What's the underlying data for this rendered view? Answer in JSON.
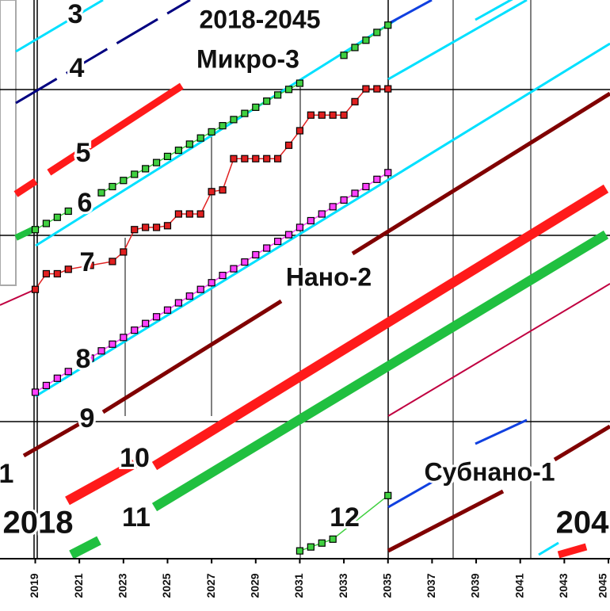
{
  "chart_data": {
    "type": "line",
    "annotations": [
      "3",
      "4",
      "2018-2045",
      "Микро-3",
      "5",
      "6",
      "7",
      "Нано-2",
      "8",
      "9",
      "1",
      "10",
      "Субнано-1",
      "2018",
      "11",
      "12",
      "204"
    ],
    "xlim": [
      2017.4,
      2045
    ],
    "xticks": [
      2019,
      2021,
      2023,
      2025,
      2027,
      2029,
      2031,
      2033,
      2035,
      2037,
      2039,
      2041,
      2043,
      2045
    ],
    "ylim": [
      0,
      100
    ],
    "series": [
      {
        "color": "#40d040",
        "x": [
          2019,
          2019.5,
          2020,
          2020.5,
          2021,
          2021.5,
          2022,
          2022.5,
          2023,
          2023.5,
          2024,
          2024.5,
          2025,
          2025.5,
          2026,
          2026.5,
          2027,
          2027.5,
          2028,
          2028.5,
          2029,
          2029.5,
          2030,
          2030.5,
          2031,
          2031.5,
          2032,
          2032.5,
          2033,
          2033.5,
          2034,
          2034.5,
          2035
        ],
        "values": [
          58.9,
          60.0,
          61.1,
          62.2,
          null,
          null,
          65.5,
          66.6,
          67.7,
          68.8,
          69.8,
          70.9,
          72.0,
          73.1,
          74.2,
          75.3,
          76.4,
          77.5,
          78.6,
          79.7,
          80.8,
          81.9,
          83.0,
          84.0,
          85.1,
          null,
          null,
          null,
          90.1,
          91.5,
          92.8,
          94.2,
          95.5
        ]
      },
      {
        "color": "#40d040",
        "x": [
          2031,
          2031.5,
          2032,
          2032.5,
          2035
        ],
        "values": [
          1.4,
          2.1,
          2.8,
          3.5,
          11.3
        ]
      },
      {
        "color": "#e02020",
        "x": [
          2019,
          2019.5,
          2020,
          2020.5,
          2021.5,
          2022.5,
          2023,
          2023.5,
          2024,
          2024.5,
          2025,
          2025.5,
          2026,
          2026.5,
          2027,
          2027.5,
          2028,
          2028.5,
          2029,
          2029.5,
          2030,
          2030.5,
          2031,
          2031.5,
          2032,
          2032.5,
          2033,
          2033.5,
          2034,
          2034.5,
          2035
        ],
        "values": [
          48.2,
          51.0,
          51.0,
          51.8,
          52.5,
          53.2,
          54.9,
          58.9,
          59.3,
          59.3,
          59.6,
          61.7,
          61.7,
          61.7,
          65.7,
          66.0,
          71.6,
          71.6,
          71.6,
          71.6,
          71.6,
          74.0,
          76.6,
          79.4,
          79.4,
          79.4,
          79.4,
          81.8,
          84.1,
          84.1,
          84.1
        ]
      },
      {
        "color": "#ff40ff",
        "x": [
          2019,
          2019.5,
          2020,
          2020.5,
          2021,
          2021.5,
          2022,
          2022.5,
          2023,
          2023.5,
          2024,
          2024.5,
          2025,
          2025.5,
          2026,
          2026.5,
          2027,
          2027.5,
          2028,
          2028.5,
          2029,
          2029.5,
          2030,
          2030.5,
          2031,
          2031.5,
          2032,
          2032.5,
          2033,
          2033.5,
          2034,
          2034.5,
          2035
        ],
        "values": [
          29.8,
          31.0,
          32.3,
          33.5,
          null,
          35.9,
          37.2,
          38.4,
          39.6,
          40.9,
          42.1,
          43.3,
          44.5,
          45.8,
          47.0,
          48.2,
          49.4,
          50.7,
          51.9,
          53.1,
          54.4,
          55.6,
          56.8,
          58.0,
          59.3,
          60.5,
          61.7,
          63.0,
          64.2,
          65.4,
          66.6,
          67.9,
          69.1
        ]
      }
    ]
  }
}
